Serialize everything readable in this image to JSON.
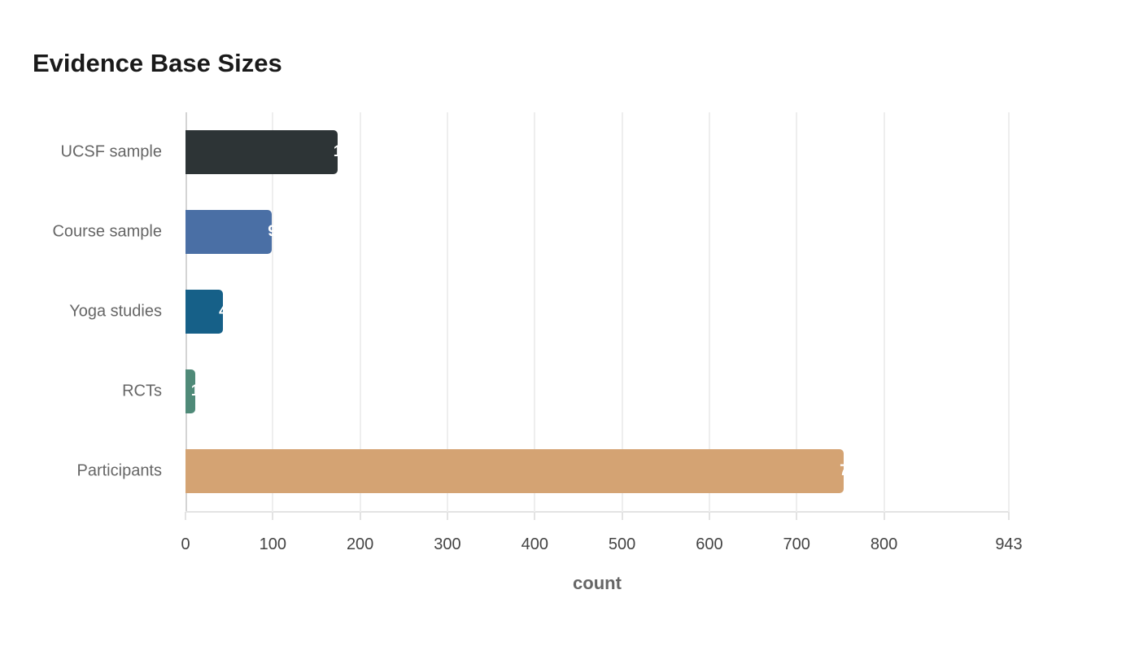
{
  "chart_data": {
    "type": "bar",
    "orientation": "horizontal",
    "title": "Evidence Base Sizes",
    "xlabel": "count",
    "ylabel": "",
    "categories": [
      "UCSF sample",
      "Course sample",
      "Yoga studies",
      "RCTs",
      "Participants"
    ],
    "values": [
      174,
      99,
      43,
      11,
      754
    ],
    "colors": [
      "#2d3436",
      "#4a6fa5",
      "#166088",
      "#4f8a78",
      "#d4a373"
    ],
    "xlim": [
      0,
      943
    ],
    "xticks": [
      0,
      100,
      200,
      300,
      400,
      500,
      600,
      700,
      800,
      943
    ],
    "grid": true,
    "legend": null
  },
  "title": "Evidence Base Sizes",
  "xaxis": {
    "label": "count",
    "ticks": [
      "0",
      "100",
      "200",
      "300",
      "400",
      "500",
      "600",
      "700",
      "800",
      "943"
    ]
  },
  "bars": [
    {
      "label": "UCSF sample",
      "value": "174",
      "color": "#2d3436"
    },
    {
      "label": "Course sample",
      "value": "99",
      "color": "#4a6fa5"
    },
    {
      "label": "Yoga studies",
      "value": "43",
      "color": "#166088"
    },
    {
      "label": "RCTs",
      "value": "11",
      "color": "#4f8a78"
    },
    {
      "label": "Participants",
      "value": "754",
      "color": "#d4a373"
    }
  ]
}
